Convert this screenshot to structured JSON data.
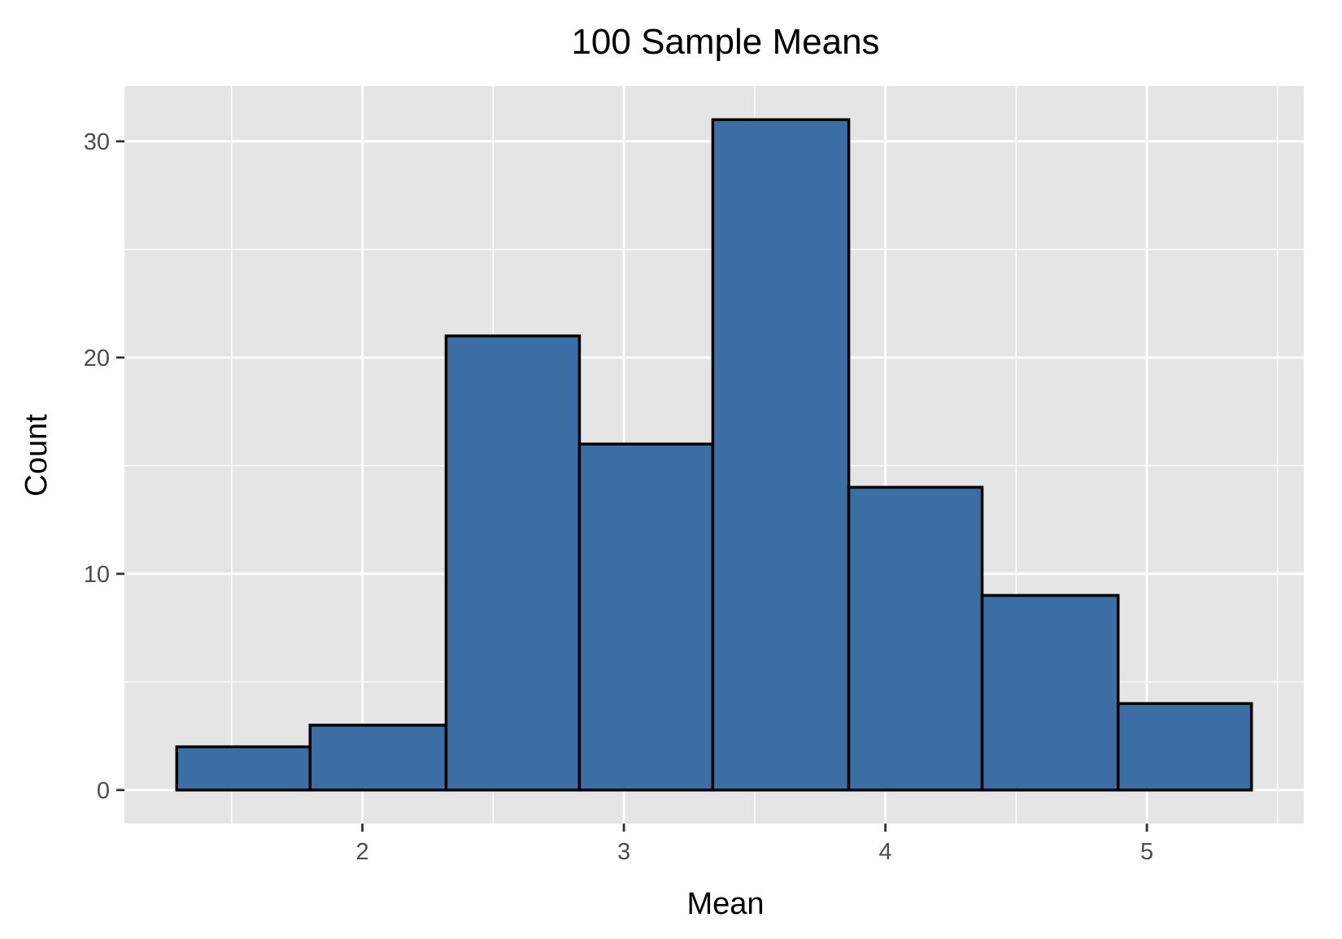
{
  "chart_data": {
    "type": "bar",
    "histogram": true,
    "title": "100 Sample Means",
    "xlabel": "Mean",
    "ylabel": "Count",
    "bins": [
      {
        "start": 1.29,
        "end": 1.8,
        "count": 2
      },
      {
        "start": 1.8,
        "end": 2.32,
        "count": 3
      },
      {
        "start": 2.32,
        "end": 2.83,
        "count": 21
      },
      {
        "start": 2.83,
        "end": 3.34,
        "count": 16
      },
      {
        "start": 3.34,
        "end": 3.86,
        "count": 31
      },
      {
        "start": 3.86,
        "end": 4.37,
        "count": 14
      },
      {
        "start": 4.37,
        "end": 4.89,
        "count": 9
      },
      {
        "start": 4.89,
        "end": 5.4,
        "count": 4
      }
    ],
    "xlim": [
      1.09,
      5.6
    ],
    "ylim": [
      -1.55,
      32.55
    ],
    "x_ticks": [
      2,
      3,
      4,
      5
    ],
    "x_tick_labels": [
      "2",
      "3",
      "4",
      "5"
    ],
    "x_minor_ticks": [
      1.5,
      2.5,
      3.5,
      4.5,
      5.5
    ],
    "y_ticks": [
      0,
      10,
      20,
      30
    ],
    "y_tick_labels": [
      "0",
      "10",
      "20",
      "30"
    ],
    "y_minor_ticks": [
      5,
      15,
      25
    ],
    "grid": true,
    "colors": {
      "bar_fill": "#3a6ea5",
      "bar_stroke": "#000000",
      "panel_background": "#e5e5e5",
      "grid": "#ffffff",
      "tick_label": "#4d4d4d",
      "axis_tick": "#333333"
    }
  }
}
